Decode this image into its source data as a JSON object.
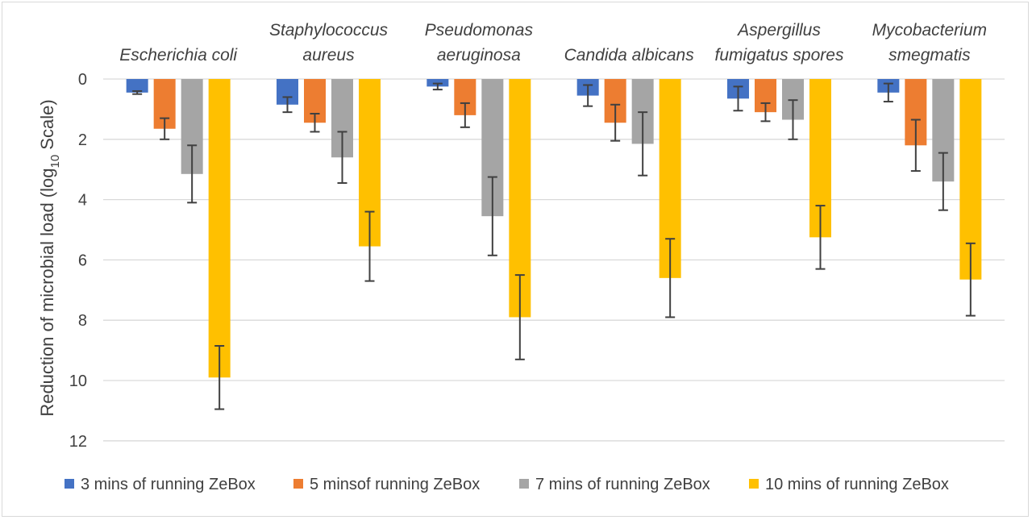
{
  "chart_data": {
    "type": "bar",
    "orientation": "vertical-inverted",
    "categories": [
      [
        "Escherichia coli"
      ],
      [
        "Staphylococcus",
        "aureus"
      ],
      [
        "Pseudomonas",
        "aeruginosa"
      ],
      [
        "Candida albicans"
      ],
      [
        "Aspergillus",
        "fumigatus spores"
      ],
      [
        "Mycobacterium",
        "smegmatis"
      ]
    ],
    "series": [
      {
        "name": "3 mins of running ZeBox",
        "color": "#4472c4",
        "values": [
          0.45,
          0.85,
          0.25,
          0.55,
          0.65,
          0.45
        ],
        "errors": [
          0.05,
          0.25,
          0.1,
          0.35,
          0.4,
          0.3
        ]
      },
      {
        "name": "5 minsof running ZeBox",
        "color": "#ed7d31",
        "values": [
          1.65,
          1.45,
          1.2,
          1.45,
          1.1,
          2.2
        ],
        "errors": [
          0.35,
          0.3,
          0.4,
          0.6,
          0.3,
          0.85
        ]
      },
      {
        "name": "7 mins of running ZeBox",
        "color": "#a5a5a5",
        "values": [
          3.15,
          2.6,
          4.55,
          2.15,
          1.35,
          3.4
        ],
        "errors": [
          0.95,
          0.85,
          1.3,
          1.05,
          0.65,
          0.95
        ]
      },
      {
        "name": "10 mins of running ZeBox",
        "color": "#ffc000",
        "values": [
          9.9,
          5.55,
          7.9,
          6.6,
          5.25,
          6.65
        ],
        "errors": [
          1.05,
          1.15,
          1.4,
          1.3,
          1.05,
          1.2
        ]
      }
    ],
    "ylabel_main": "Reduction of microbial load (log",
    "ylabel_sub": "10",
    "ylabel_tail": " Scale)",
    "ylim": [
      0,
      12
    ],
    "yticks": [
      "0",
      "2",
      "4",
      "6",
      "8",
      "10",
      "12"
    ],
    "y_inverted": true,
    "grid": true,
    "legend_position": "bottom"
  }
}
